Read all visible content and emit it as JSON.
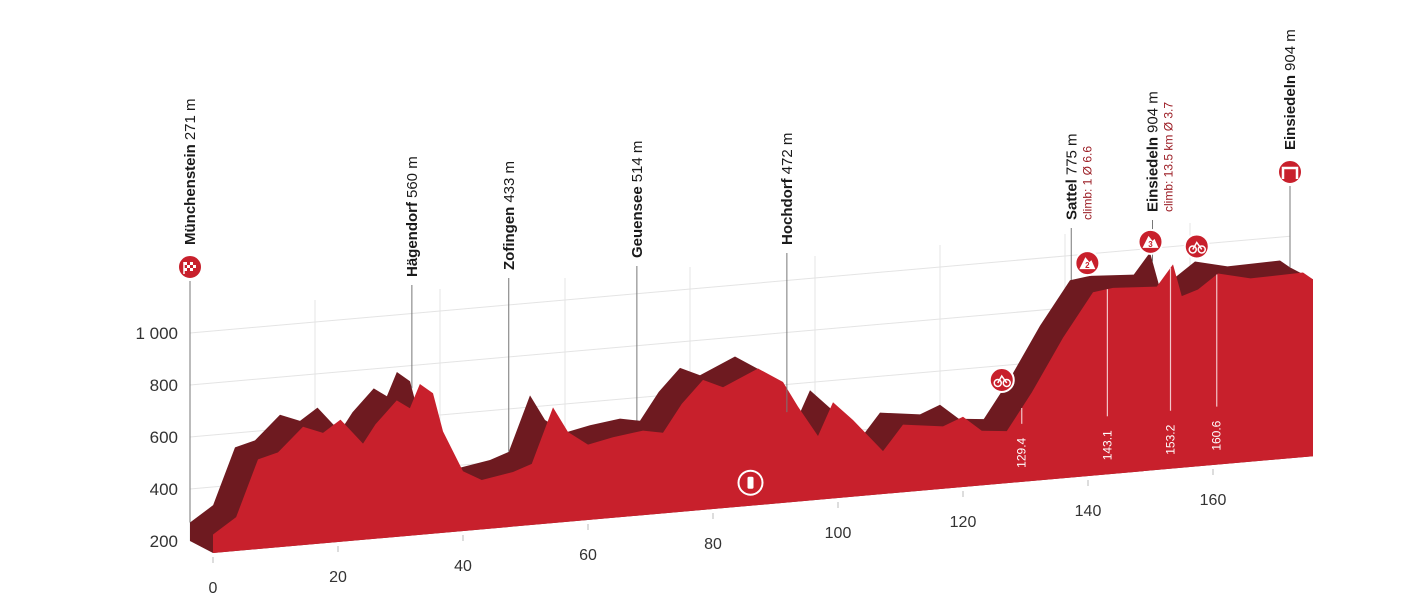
{
  "chart_data": {
    "type": "area",
    "x": [
      0,
      3.7,
      7.2,
      10.4,
      14.4,
      17.6,
      20.4,
      24,
      26,
      29.4,
      31.5,
      33.1,
      35.2,
      36.8,
      40,
      43,
      48,
      51,
      54.4,
      56.8,
      60,
      64,
      68.8,
      72,
      75,
      78.4,
      81.6,
      87.2,
      91.2,
      93.6,
      96.8,
      99.2,
      102.4,
      107.2,
      110.4,
      116.8,
      120,
      123,
      127,
      131,
      136,
      140.8,
      144,
      151,
      153.6,
      155,
      157.6,
      160.8,
      166,
      174.4,
      176
    ],
    "values": [
      271,
      330,
      545,
      565,
      655,
      625,
      670,
      570,
      640,
      725,
      690,
      780,
      740,
      590,
      430,
      390,
      410,
      435,
      645,
      545,
      490,
      510,
      525,
      510,
      615,
      700,
      665,
      725,
      665,
      565,
      445,
      570,
      495,
      365,
      460,
      440,
      470,
      410,
      400,
      540,
      740,
      905,
      915,
      905,
      985,
      860,
      880,
      935,
      905,
      910,
      880
    ],
    "color": "#c8202c",
    "ridge_color": "#6e1a20",
    "xlim": [
      0,
      176
    ],
    "xticks": [
      0,
      20,
      40,
      60,
      80,
      100,
      120,
      140,
      160
    ],
    "ylim": [
      200,
      1000
    ],
    "yticks": [
      200,
      400,
      600,
      800,
      {
        "value": 1000,
        "label": "1 000"
      }
    ],
    "grid": true,
    "waypoints": [
      {
        "name": "Münchenstein",
        "elevation": "271 m",
        "km": 0,
        "icon": "start"
      },
      {
        "name": "Hägendorf",
        "elevation": "560 m",
        "km": 35.5
      },
      {
        "name": "Zofingen",
        "elevation": "433 m",
        "km": 51
      },
      {
        "name": "Geuensee",
        "elevation": "514 m",
        "km": 71.5
      },
      {
        "name": "Hochdorf",
        "elevation": "472 m",
        "km": 95.5
      },
      {
        "name": "Sattel",
        "elevation": "775 m",
        "km": 141,
        "climb": "climb: 1 Ø 6.6"
      },
      {
        "name": "Einsiedeln",
        "elevation": "904 m",
        "km": 154,
        "climb": "climb: 13.5 km Ø 3.7"
      },
      {
        "name": "Einsiedeln",
        "elevation": "904 m",
        "km": 176,
        "icon": "finish"
      }
    ],
    "markers": [
      {
        "km": 129.4,
        "kind": "sprint"
      },
      {
        "km": 143.1,
        "kind": "kom",
        "category": "2"
      },
      {
        "km": 153.2,
        "kind": "kom",
        "category": "3"
      },
      {
        "km": 160.6,
        "kind": "sprint"
      }
    ],
    "feed_zone": {
      "km": 86
    }
  }
}
